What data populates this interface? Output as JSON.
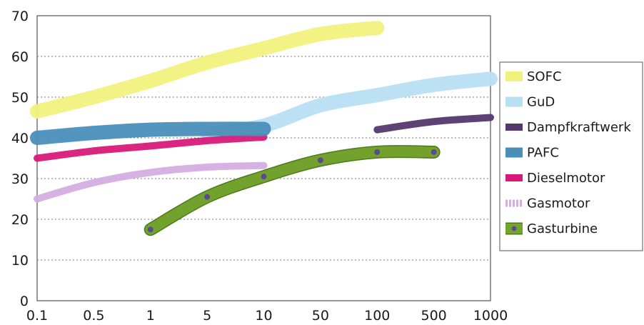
{
  "chart_data": {
    "type": "line",
    "title": "",
    "xlabel": "",
    "ylabel": "",
    "x_categories": [
      "0.1",
      "0.5",
      "1",
      "5",
      "10",
      "50",
      "100",
      "500",
      "1000"
    ],
    "y_ticks": [
      "0",
      "10",
      "20",
      "30",
      "40",
      "50",
      "60",
      "70"
    ],
    "ylim": [
      0,
      70
    ],
    "x_scale": "log-style categorical",
    "grid": "horizontal dotted",
    "legend_position": "right",
    "series": [
      {
        "name": "SOFC",
        "color": "#f1f17e",
        "style": "wide band",
        "points": [
          [
            0.1,
            46.5
          ],
          [
            0.5,
            50
          ],
          [
            1,
            54
          ],
          [
            5,
            58.5
          ],
          [
            10,
            62
          ],
          [
            50,
            65.5
          ],
          [
            100,
            67
          ]
        ]
      },
      {
        "name": "GuD",
        "color": "#b9dff3",
        "style": "wide band",
        "points": [
          [
            5,
            41
          ],
          [
            10,
            43
          ],
          [
            50,
            48
          ],
          [
            100,
            50.5
          ],
          [
            500,
            53
          ],
          [
            1000,
            54.5
          ]
        ]
      },
      {
        "name": "Dampfkraftwerk",
        "color": "#54386f",
        "style": "line",
        "points": [
          [
            100,
            42
          ],
          [
            500,
            44
          ],
          [
            1000,
            45
          ]
        ]
      },
      {
        "name": "PAFC",
        "color": "#4a8fba",
        "style": "wide band",
        "points": [
          [
            0.1,
            40
          ],
          [
            0.5,
            41.2
          ],
          [
            1,
            42
          ],
          [
            5,
            42.2
          ],
          [
            10,
            42.2
          ]
        ]
      },
      {
        "name": "Dieselmotor",
        "color": "#d8197a",
        "style": "line",
        "points": [
          [
            0.1,
            35
          ],
          [
            0.5,
            36.8
          ],
          [
            1,
            38
          ],
          [
            5,
            39.3
          ],
          [
            10,
            40.2
          ]
        ]
      },
      {
        "name": "Gasmotor",
        "color": "#d4aee0",
        "style": "dashed",
        "points": [
          [
            0.1,
            25
          ],
          [
            0.5,
            29
          ],
          [
            1,
            31.5
          ],
          [
            5,
            32.8
          ],
          [
            10,
            33.2
          ]
        ]
      },
      {
        "name": "Gasturbine",
        "color": "#74a42e",
        "style": "line with markers",
        "marker_color": "#5a4a8f",
        "points": [
          [
            1,
            17.5
          ],
          [
            5,
            25.5
          ],
          [
            10,
            30.5
          ],
          [
            50,
            34.5
          ],
          [
            100,
            36.5
          ],
          [
            500,
            36.5
          ]
        ]
      }
    ]
  }
}
